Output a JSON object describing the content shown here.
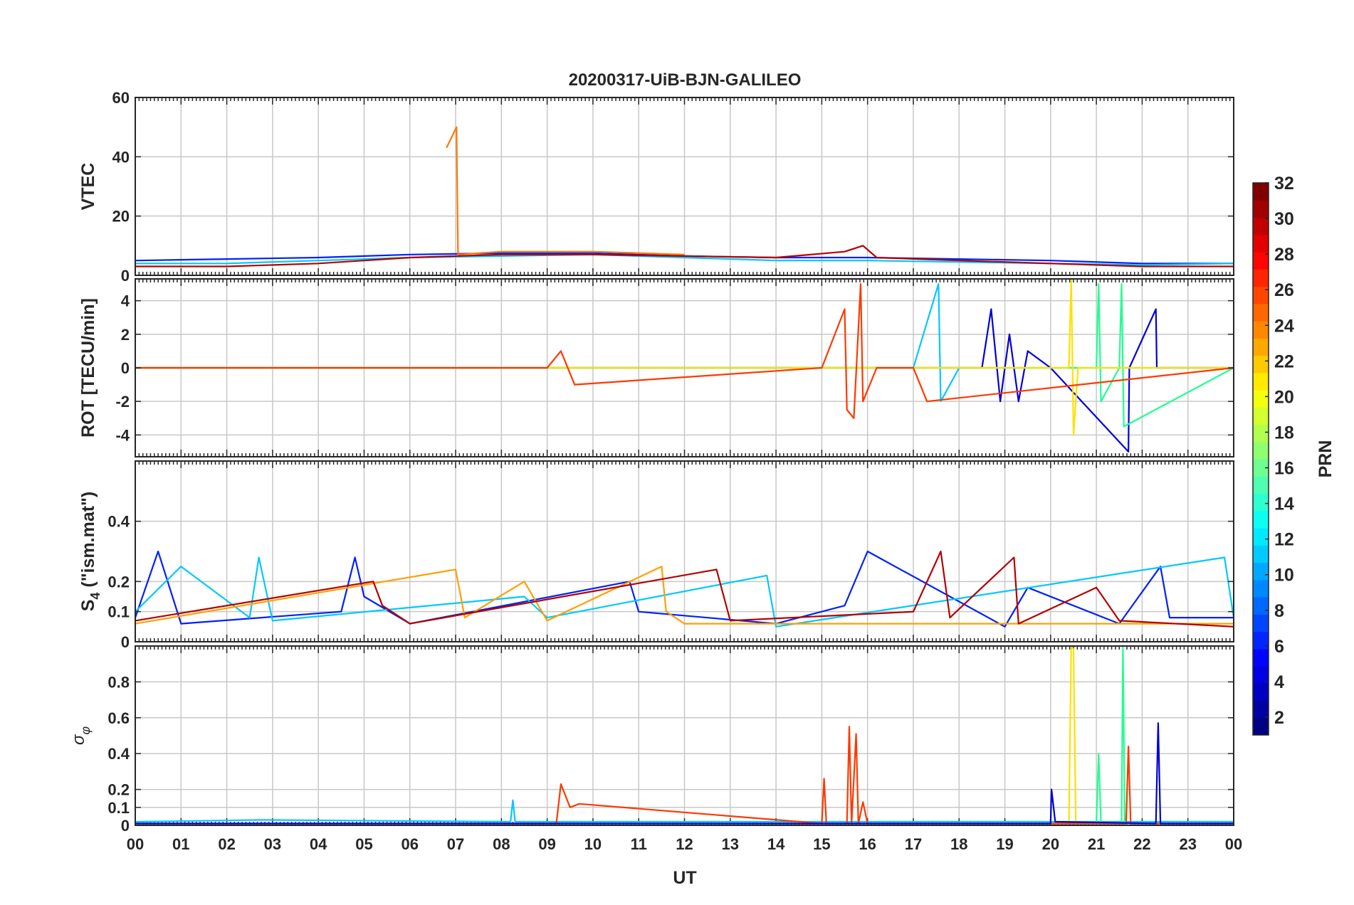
{
  "figure": {
    "title": "20200317-UiB-BJN-GALILEO",
    "xlabel": "UT",
    "x_ticks": [
      "00",
      "01",
      "02",
      "03",
      "04",
      "05",
      "06",
      "07",
      "08",
      "09",
      "10",
      "11",
      "12",
      "13",
      "14",
      "15",
      "16",
      "17",
      "18",
      "19",
      "20",
      "21",
      "22",
      "23",
      "00"
    ]
  },
  "colorbar": {
    "label": "PRN",
    "ticks": [
      "2",
      "4",
      "6",
      "8",
      "10",
      "12",
      "14",
      "16",
      "18",
      "20",
      "22",
      "24",
      "26",
      "28",
      "30",
      "32"
    ],
    "range": [
      1,
      32
    ],
    "colormap": "jet"
  },
  "chart_data": [
    {
      "type": "line",
      "ylabel": "VTEC",
      "xlim": [
        0,
        24
      ],
      "ylim": [
        0,
        60
      ],
      "yticks": [
        0,
        20,
        40,
        60
      ],
      "ytick_labels": [
        "0",
        "20",
        "40",
        "60"
      ],
      "series": [
        {
          "prn": 3,
          "color": "#0020ff",
          "x": [
            0,
            2,
            4,
            6,
            8,
            10,
            12,
            14,
            16,
            18,
            20,
            22,
            24
          ],
          "y": [
            5,
            5.5,
            6,
            7,
            7.5,
            7.5,
            6.5,
            6,
            6,
            5.5,
            5,
            4,
            4
          ]
        },
        {
          "prn": 12,
          "color": "#00c8ff",
          "x": [
            0,
            2,
            4,
            6,
            8,
            10,
            12,
            14,
            16,
            18,
            20,
            22,
            24
          ],
          "y": [
            4,
            4,
            5,
            6,
            6.5,
            7,
            6,
            5,
            5,
            4.5,
            4,
            3.5,
            4
          ]
        },
        {
          "prn": 25,
          "color": "#ff7800",
          "x": [
            6.8,
            7.02,
            7.05,
            7.06,
            8,
            10,
            12
          ],
          "y": [
            43,
            50,
            8,
            7,
            8,
            8,
            7
          ]
        },
        {
          "prn": 30,
          "color": "#b40000",
          "x": [
            0,
            2,
            4,
            6,
            8,
            10,
            12,
            14,
            15.5,
            15.9,
            16.2,
            18,
            20,
            22,
            24
          ],
          "y": [
            3,
            3,
            4,
            6,
            7,
            7,
            6.5,
            6,
            8,
            10,
            6,
            5,
            4,
            3,
            3
          ]
        }
      ]
    },
    {
      "type": "line",
      "ylabel": "ROT [TECU/min]",
      "xlim": [
        0,
        24
      ],
      "ylim": [
        -5.3,
        5.3
      ],
      "yticks": [
        -4,
        -2,
        0,
        2,
        4
      ],
      "ytick_labels": [
        "-4",
        "-2",
        "0",
        "2",
        "4"
      ],
      "series": [
        {
          "prn": 2,
          "color": "#0000d8",
          "x": [
            0,
            5,
            10,
            14,
            18.5,
            18.7,
            18.9,
            19.1,
            19.3,
            19.5,
            20,
            21.7,
            21.72,
            22.3,
            22.32,
            24
          ],
          "y": [
            0,
            0,
            0,
            0,
            0,
            3.5,
            -2,
            2,
            -2,
            1,
            0,
            -5,
            0,
            3.5,
            0,
            0
          ]
        },
        {
          "prn": 12,
          "color": "#00c8ff",
          "x": [
            0,
            10,
            17,
            17.55,
            17.6,
            18,
            24
          ],
          "y": [
            0,
            0,
            0,
            5,
            -2,
            0,
            0
          ]
        },
        {
          "prn": 15,
          "color": "#20ff90",
          "x": [
            0,
            21,
            21.05,
            21.1,
            21.5,
            21.55,
            21.6,
            24
          ],
          "y": [
            0,
            0,
            5,
            -2,
            0,
            5,
            -3.5,
            0
          ]
        },
        {
          "prn": 20,
          "color": "#ffe000",
          "x": [
            0,
            20.4,
            20.45,
            20.5,
            20.6,
            24
          ],
          "y": [
            0,
            0,
            5.3,
            -4,
            0,
            0
          ]
        },
        {
          "prn": 26,
          "color": "#ff3800",
          "x": [
            0,
            9,
            9.3,
            9.6,
            15,
            15.5,
            15.55,
            15.7,
            15.85,
            15.9,
            16.2,
            17,
            17.3,
            24
          ],
          "y": [
            0,
            0,
            1,
            -1,
            0,
            3.5,
            -2.5,
            -3,
            5,
            -2,
            0,
            0,
            -2,
            0
          ]
        }
      ]
    },
    {
      "type": "line",
      "ylabel": "S4 (\"ism.mat\")",
      "ylabel_base": "S",
      "ylabel_sub": "4",
      "ylabel_rest": " (\"ism.mat\")",
      "xlim": [
        0,
        24
      ],
      "ylim": [
        0,
        0.6
      ],
      "yticks": [
        0,
        0.1,
        0.2,
        0.4
      ],
      "ytick_labels": [
        "0",
        "0.1",
        "0.2",
        "0.4"
      ],
      "series": [
        {
          "prn": 3,
          "color": "#0020ff",
          "x": [
            0,
            0.5,
            1,
            4.5,
            4.8,
            5,
            6,
            10.8,
            11,
            14,
            15.5,
            16,
            19,
            19.5,
            21.5,
            22.4,
            22.6,
            24
          ],
          "y": [
            0.08,
            0.3,
            0.06,
            0.1,
            0.28,
            0.15,
            0.06,
            0.2,
            0.1,
            0.06,
            0.12,
            0.3,
            0.05,
            0.18,
            0.06,
            0.25,
            0.08,
            0.08
          ]
        },
        {
          "prn": 12,
          "color": "#00c8ff",
          "x": [
            0,
            1,
            2.5,
            2.7,
            3,
            8.5,
            9,
            13.8,
            14,
            23.8,
            24
          ],
          "y": [
            0.1,
            0.25,
            0.08,
            0.28,
            0.07,
            0.15,
            0.08,
            0.22,
            0.05,
            0.28,
            0.08
          ]
        },
        {
          "prn": 22,
          "color": "#ffa000",
          "x": [
            0,
            7,
            7.2,
            8.5,
            9,
            11.5,
            11.6,
            12,
            24
          ],
          "y": [
            0.06,
            0.24,
            0.08,
            0.2,
            0.07,
            0.25,
            0.1,
            0.06,
            0.06
          ]
        },
        {
          "prn": 30,
          "color": "#b40000",
          "x": [
            0,
            5.2,
            5.4,
            6,
            12.7,
            13,
            17,
            17.6,
            17.8,
            19.2,
            19.3,
            21,
            21.5,
            24
          ],
          "y": [
            0.07,
            0.2,
            0.12,
            0.06,
            0.24,
            0.07,
            0.1,
            0.3,
            0.08,
            0.28,
            0.06,
            0.18,
            0.07,
            0.05
          ]
        }
      ]
    },
    {
      "type": "line",
      "ylabel": "σφ",
      "ylabel_base": "σ",
      "ylabel_sub": "φ",
      "xlim": [
        0,
        24
      ],
      "ylim": [
        0,
        1
      ],
      "yticks": [
        0,
        0.1,
        0.2,
        0.4,
        0.6,
        0.8
      ],
      "ytick_labels": [
        "0",
        "0.1",
        "0.2",
        "0.4",
        "0.6",
        "0.8"
      ],
      "series": [
        {
          "prn": 12,
          "color": "#00c8ff",
          "x": [
            0,
            2.8,
            8.2,
            8.25,
            8.3,
            24
          ],
          "y": [
            0.02,
            0.03,
            0.02,
            0.14,
            0.02,
            0.02
          ]
        },
        {
          "prn": 20,
          "color": "#ffe000",
          "x": [
            0,
            20.4,
            20.45,
            20.5,
            20.55,
            24
          ],
          "y": [
            0.01,
            0.01,
            1,
            0.98,
            0.01,
            0.01
          ]
        },
        {
          "prn": 15,
          "color": "#20ff90",
          "x": [
            0,
            21,
            21.05,
            21.1,
            21.55,
            21.58,
            21.62,
            24
          ],
          "y": [
            0.01,
            0.01,
            0.4,
            0.01,
            0.01,
            1,
            0.01,
            0.01
          ]
        },
        {
          "prn": 26,
          "color": "#ff3800",
          "x": [
            0,
            9.2,
            9.3,
            9.5,
            9.7,
            15,
            15.05,
            15.1,
            15.55,
            15.6,
            15.65,
            15.75,
            15.8,
            15.9,
            16,
            21.65,
            21.7,
            21.75,
            24
          ],
          "y": [
            0.01,
            0.01,
            0.23,
            0.1,
            0.12,
            0.01,
            0.26,
            0.01,
            0.01,
            0.55,
            0.01,
            0.51,
            0.01,
            0.13,
            0.01,
            0.01,
            0.44,
            0.01,
            0.01
          ]
        },
        {
          "prn": 2,
          "color": "#0000d8",
          "x": [
            0,
            20,
            20.02,
            20.1,
            22.3,
            22.35,
            22.4,
            24
          ],
          "y": [
            0.01,
            0.01,
            0.2,
            0.02,
            0.01,
            0.57,
            0.01,
            0.01
          ]
        }
      ]
    }
  ]
}
